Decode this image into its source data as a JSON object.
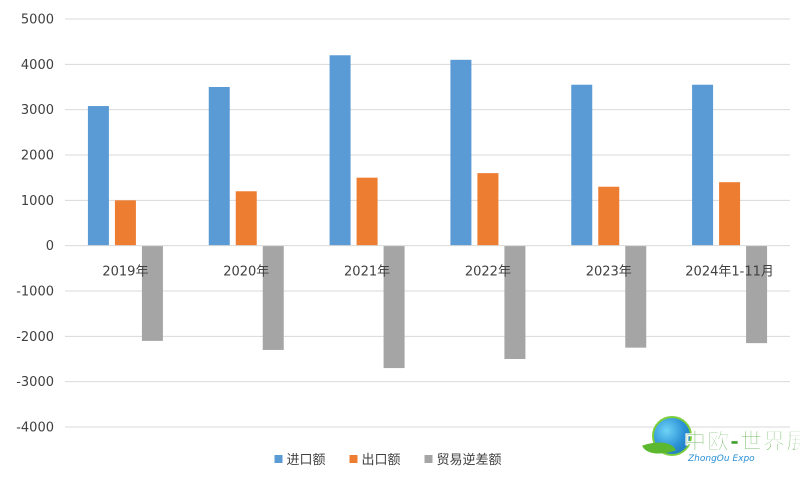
{
  "chart_data": {
    "type": "bar",
    "categories": [
      "2019年",
      "2020年",
      "2021年",
      "2022年",
      "2023年",
      "2024年1-11月"
    ],
    "series": [
      {
        "name": "进口额",
        "color": "#5b9bd5",
        "values": [
          3080,
          3500,
          4200,
          4100,
          3550,
          3550
        ]
      },
      {
        "name": "出口额",
        "color": "#ed7d31",
        "values": [
          1000,
          1200,
          1500,
          1600,
          1300,
          1400
        ]
      },
      {
        "name": "贸易逆差额",
        "color": "#a5a5a5",
        "values": [
          -2100,
          -2300,
          -2700,
          -2500,
          -2250,
          -2150
        ]
      }
    ],
    "ylim": [
      -4000,
      5000
    ],
    "yticks": [
      5000,
      4000,
      3000,
      2000,
      1000,
      0,
      -1000,
      -2000,
      -3000,
      -4000
    ],
    "grid": true,
    "legend_position": "bottom-center",
    "title": "",
    "xlabel": "",
    "ylabel": ""
  },
  "logo": {
    "title": "中欧-世界展会",
    "subtitle": "ZhongOu Expo"
  }
}
